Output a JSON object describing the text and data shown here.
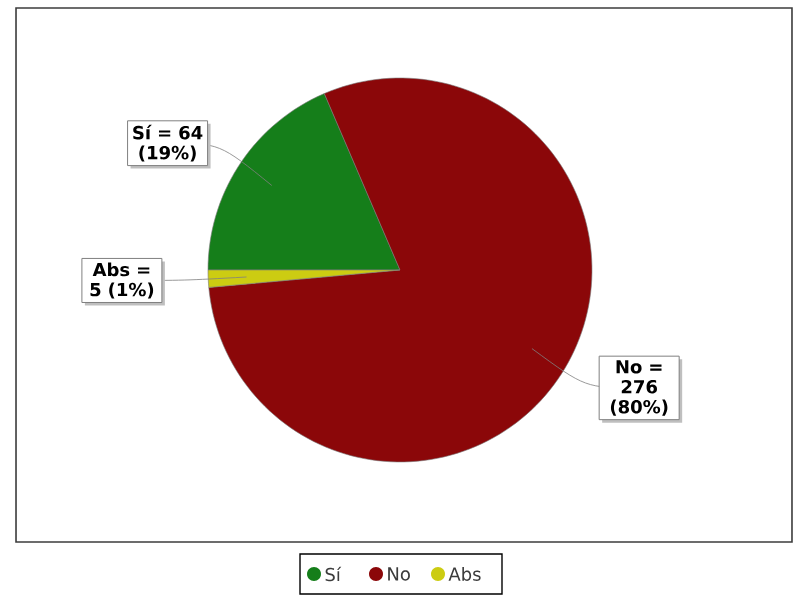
{
  "chart_data": {
    "type": "pie",
    "categories": [
      "Sí",
      "No",
      "Abs"
    ],
    "values": [
      64,
      276,
      5
    ],
    "colors": [
      "#157e1a",
      "#8b0709",
      "#cccc12"
    ],
    "value_labels": [
      "Sí = 64 (19%)",
      "No = 276 (80%)",
      "Abs = 5 (1%)"
    ],
    "legend": "bottom"
  }
}
